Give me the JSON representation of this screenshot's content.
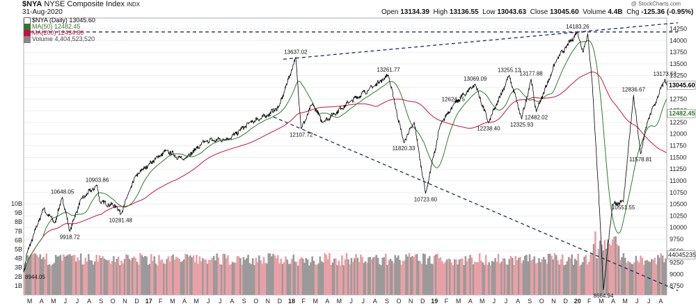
{
  "header": {
    "symbol": "$NYA",
    "name": "NYSE Composite Index",
    "exchange": "INDX",
    "date": "31-Aug-2020",
    "watermark": "@ StockCharts.com",
    "open_label": "Open",
    "open": "13134.39",
    "high_label": "High",
    "high": "13136.55",
    "low_label": "Low",
    "low": "13043.63",
    "close_label": "Close",
    "close": "13045.60",
    "volume_label": "Volume",
    "volume": "4.4B",
    "chg_label": "Chg",
    "chg": "-125.36 (-0.95%)"
  },
  "legend": {
    "price": "$NYA (Daily) 13045.60",
    "ma50": "MA(50) 12482.45",
    "ma200": "MA(200) 12434.80",
    "volume": "Volume 4,404,523,520"
  },
  "colors": {
    "price": "#000000",
    "ma50": "#2d7a2d",
    "ma200": "#c8103e",
    "volume_up": "#9a9a9a",
    "volume_down": "#e8a0a6",
    "trendline": "#1c2e55",
    "grid": "#dddddd"
  },
  "chart_data": {
    "type": "line",
    "title": "$NYA NYSE Composite Index INDX",
    "y_right_ticks": [
      8750,
      9000,
      9250,
      9500,
      9750,
      10000,
      10250,
      10500,
      10750,
      11000,
      11250,
      11500,
      11750,
      12000,
      12250,
      12500,
      12750,
      13000,
      13250,
      13500,
      13750,
      14000,
      14250
    ],
    "ylim": [
      8560,
      14480
    ],
    "volume_ticks": [
      "1B",
      "2B",
      "3B",
      "4B",
      "5B",
      "6B",
      "7B",
      "8B",
      "9B",
      "10B"
    ],
    "volume_ylim": [
      0,
      10
    ],
    "x_axis_labels": [
      "M",
      "A",
      "M",
      "J",
      "J",
      "A",
      "S",
      "O",
      "N",
      "D",
      "17",
      "F",
      "M",
      "A",
      "M",
      "J",
      "J",
      "A",
      "S",
      "O",
      "N",
      "D",
      "18",
      "F",
      "M",
      "A",
      "M",
      "J",
      "J",
      "A",
      "S",
      "O",
      "N",
      "D",
      "19",
      "F",
      "M",
      "A",
      "M",
      "J",
      "J",
      "A",
      "S",
      "O",
      "N",
      "D",
      "20",
      "F",
      "M",
      "A",
      "M",
      "J",
      "J",
      "A"
    ],
    "x_start_month": "2016-03",
    "price_anchors": [
      [
        "2016-03-01",
        9050
      ],
      [
        "2016-03-10",
        9460
      ],
      [
        "2016-04-20",
        10400
      ],
      [
        "2016-05-20",
        10100
      ],
      [
        "2016-06-08",
        10648.05
      ],
      [
        "2016-06-27",
        9918.72
      ],
      [
        "2016-07-25",
        10600
      ],
      [
        "2016-09-05",
        10903.86
      ],
      [
        "2016-09-12",
        10550
      ],
      [
        "2016-10-25",
        10450
      ],
      [
        "2016-11-04",
        10281.48
      ],
      [
        "2016-12-12",
        11100
      ],
      [
        "2017-01-15",
        11350
      ],
      [
        "2017-03-01",
        11650
      ],
      [
        "2017-04-12",
        11450
      ],
      [
        "2017-06-10",
        11850
      ],
      [
        "2017-08-10",
        11900
      ],
      [
        "2017-10-01",
        12250
      ],
      [
        "2017-11-15",
        12400
      ],
      [
        "2017-12-15",
        12600
      ],
      [
        "2018-01-26",
        13637.02
      ],
      [
        "2018-02-09",
        12107.72
      ],
      [
        "2018-03-10",
        12650
      ],
      [
        "2018-04-05",
        12250
      ],
      [
        "2018-06-15",
        12700
      ],
      [
        "2018-08-01",
        12950
      ],
      [
        "2018-09-20",
        13261.77
      ],
      [
        "2018-10-29",
        11820.33
      ],
      [
        "2018-11-25",
        12250
      ],
      [
        "2018-12-24",
        10723.6
      ],
      [
        "2019-01-31",
        12200
      ],
      [
        "2019-03-05",
        12624.75
      ],
      [
        "2019-04-30",
        13069.09
      ],
      [
        "2019-06-03",
        12238.4
      ],
      [
        "2019-07-26",
        13255.13
      ],
      [
        "2019-08-27",
        12325.93
      ],
      [
        "2019-09-20",
        13177.88
      ],
      [
        "2019-10-03",
        12482.02
      ],
      [
        "2019-11-25",
        13600
      ],
      [
        "2020-01-17",
        14183.26
      ],
      [
        "2020-01-31",
        13750
      ],
      [
        "2020-02-12",
        14150
      ],
      [
        "2020-02-24",
        13000
      ],
      [
        "2020-03-09",
        11000
      ],
      [
        "2020-03-23",
        8664.94
      ],
      [
        "2020-04-15",
        10500
      ],
      [
        "2020-05-13",
        10551.55
      ],
      [
        "2020-06-08",
        12836.67
      ],
      [
        "2020-06-26",
        11578.81
      ],
      [
        "2020-07-15",
        12300
      ],
      [
        "2020-08-12",
        12850
      ],
      [
        "2020-08-27",
        13173.57
      ],
      [
        "2020-08-31",
        13045.6
      ]
    ],
    "ma50": "12482.45",
    "ma200": "12434.80",
    "last_price": "13045.60",
    "annotations": [
      {
        "label": "10648.05",
        "date": "2016-06-08",
        "value": 10648.05,
        "pos": "above"
      },
      {
        "label": "9918.72",
        "date": "2016-06-27",
        "value": 9918.72,
        "pos": "below"
      },
      {
        "label": "10903.86",
        "date": "2016-09-05",
        "value": 10903.86,
        "pos": "above"
      },
      {
        "label": "10281.48",
        "date": "2016-11-04",
        "value": 10281.48,
        "pos": "below"
      },
      {
        "label": "13637.02",
        "date": "2018-01-26",
        "value": 13637.02,
        "pos": "above"
      },
      {
        "label": "12107.72",
        "date": "2018-02-09",
        "value": 12107.72,
        "pos": "below"
      },
      {
        "label": "13261.77",
        "date": "2018-09-20",
        "value": 13261.77,
        "pos": "above"
      },
      {
        "label": "11820.33",
        "date": "2018-10-29",
        "value": 11820.33,
        "pos": "below"
      },
      {
        "label": "10723.60",
        "date": "2018-12-24",
        "value": 10723.6,
        "pos": "below"
      },
      {
        "label": "12624.75",
        "date": "2019-03-05",
        "value": 12624.75,
        "pos": "above"
      },
      {
        "label": "13069.09",
        "date": "2019-04-30",
        "value": 13069.09,
        "pos": "above"
      },
      {
        "label": "12238.40",
        "date": "2019-06-03",
        "value": 12238.4,
        "pos": "below"
      },
      {
        "label": "13255.13",
        "date": "2019-07-26",
        "value": 13255.13,
        "pos": "above"
      },
      {
        "label": "12325.93",
        "date": "2019-08-27",
        "value": 12325.93,
        "pos": "below"
      },
      {
        "label": "13177.88",
        "date": "2019-09-20",
        "value": 13177.88,
        "pos": "above"
      },
      {
        "label": "12482.02",
        "date": "2019-10-03",
        "value": 12482.02,
        "pos": "below"
      },
      {
        "label": "14183.26",
        "date": "2020-01-17",
        "value": 14183.26,
        "pos": "above"
      },
      {
        "label": "8664.94",
        "date": "2020-03-23",
        "value": 8664.94,
        "pos": "below"
      },
      {
        "label": "10551.55",
        "date": "2020-05-13",
        "value": 10551.55,
        "pos": "below"
      },
      {
        "label": "12836.67",
        "date": "2020-06-08",
        "value": 12836.67,
        "pos": "above"
      },
      {
        "label": "11578.81",
        "date": "2020-06-26",
        "value": 11578.81,
        "pos": "below"
      },
      {
        "label": "13173.57",
        "date": "2020-08-27",
        "value": 13173.57,
        "pos": "above"
      }
    ],
    "left_annotations": [
      {
        "label": "8944.05",
        "value": 8944.05
      }
    ],
    "volume_last": "4404523520",
    "trendlines": [
      {
        "name": "upper-trendline",
        "from": [
          "2017-12-25",
          13600
        ],
        "to": [
          "2020-09-30",
          14380
        ],
        "style": "dashed"
      },
      {
        "name": "lower-trendline",
        "from": [
          "2017-11-15",
          12420
        ],
        "to": [
          "2020-09-30",
          8650
        ],
        "style": "dashed"
      },
      {
        "name": "horizontal-resistance",
        "from": [
          "2016-03-01",
          14183.26
        ],
        "to": [
          "2020-09-30",
          14183.26
        ],
        "style": "dashed"
      }
    ]
  }
}
